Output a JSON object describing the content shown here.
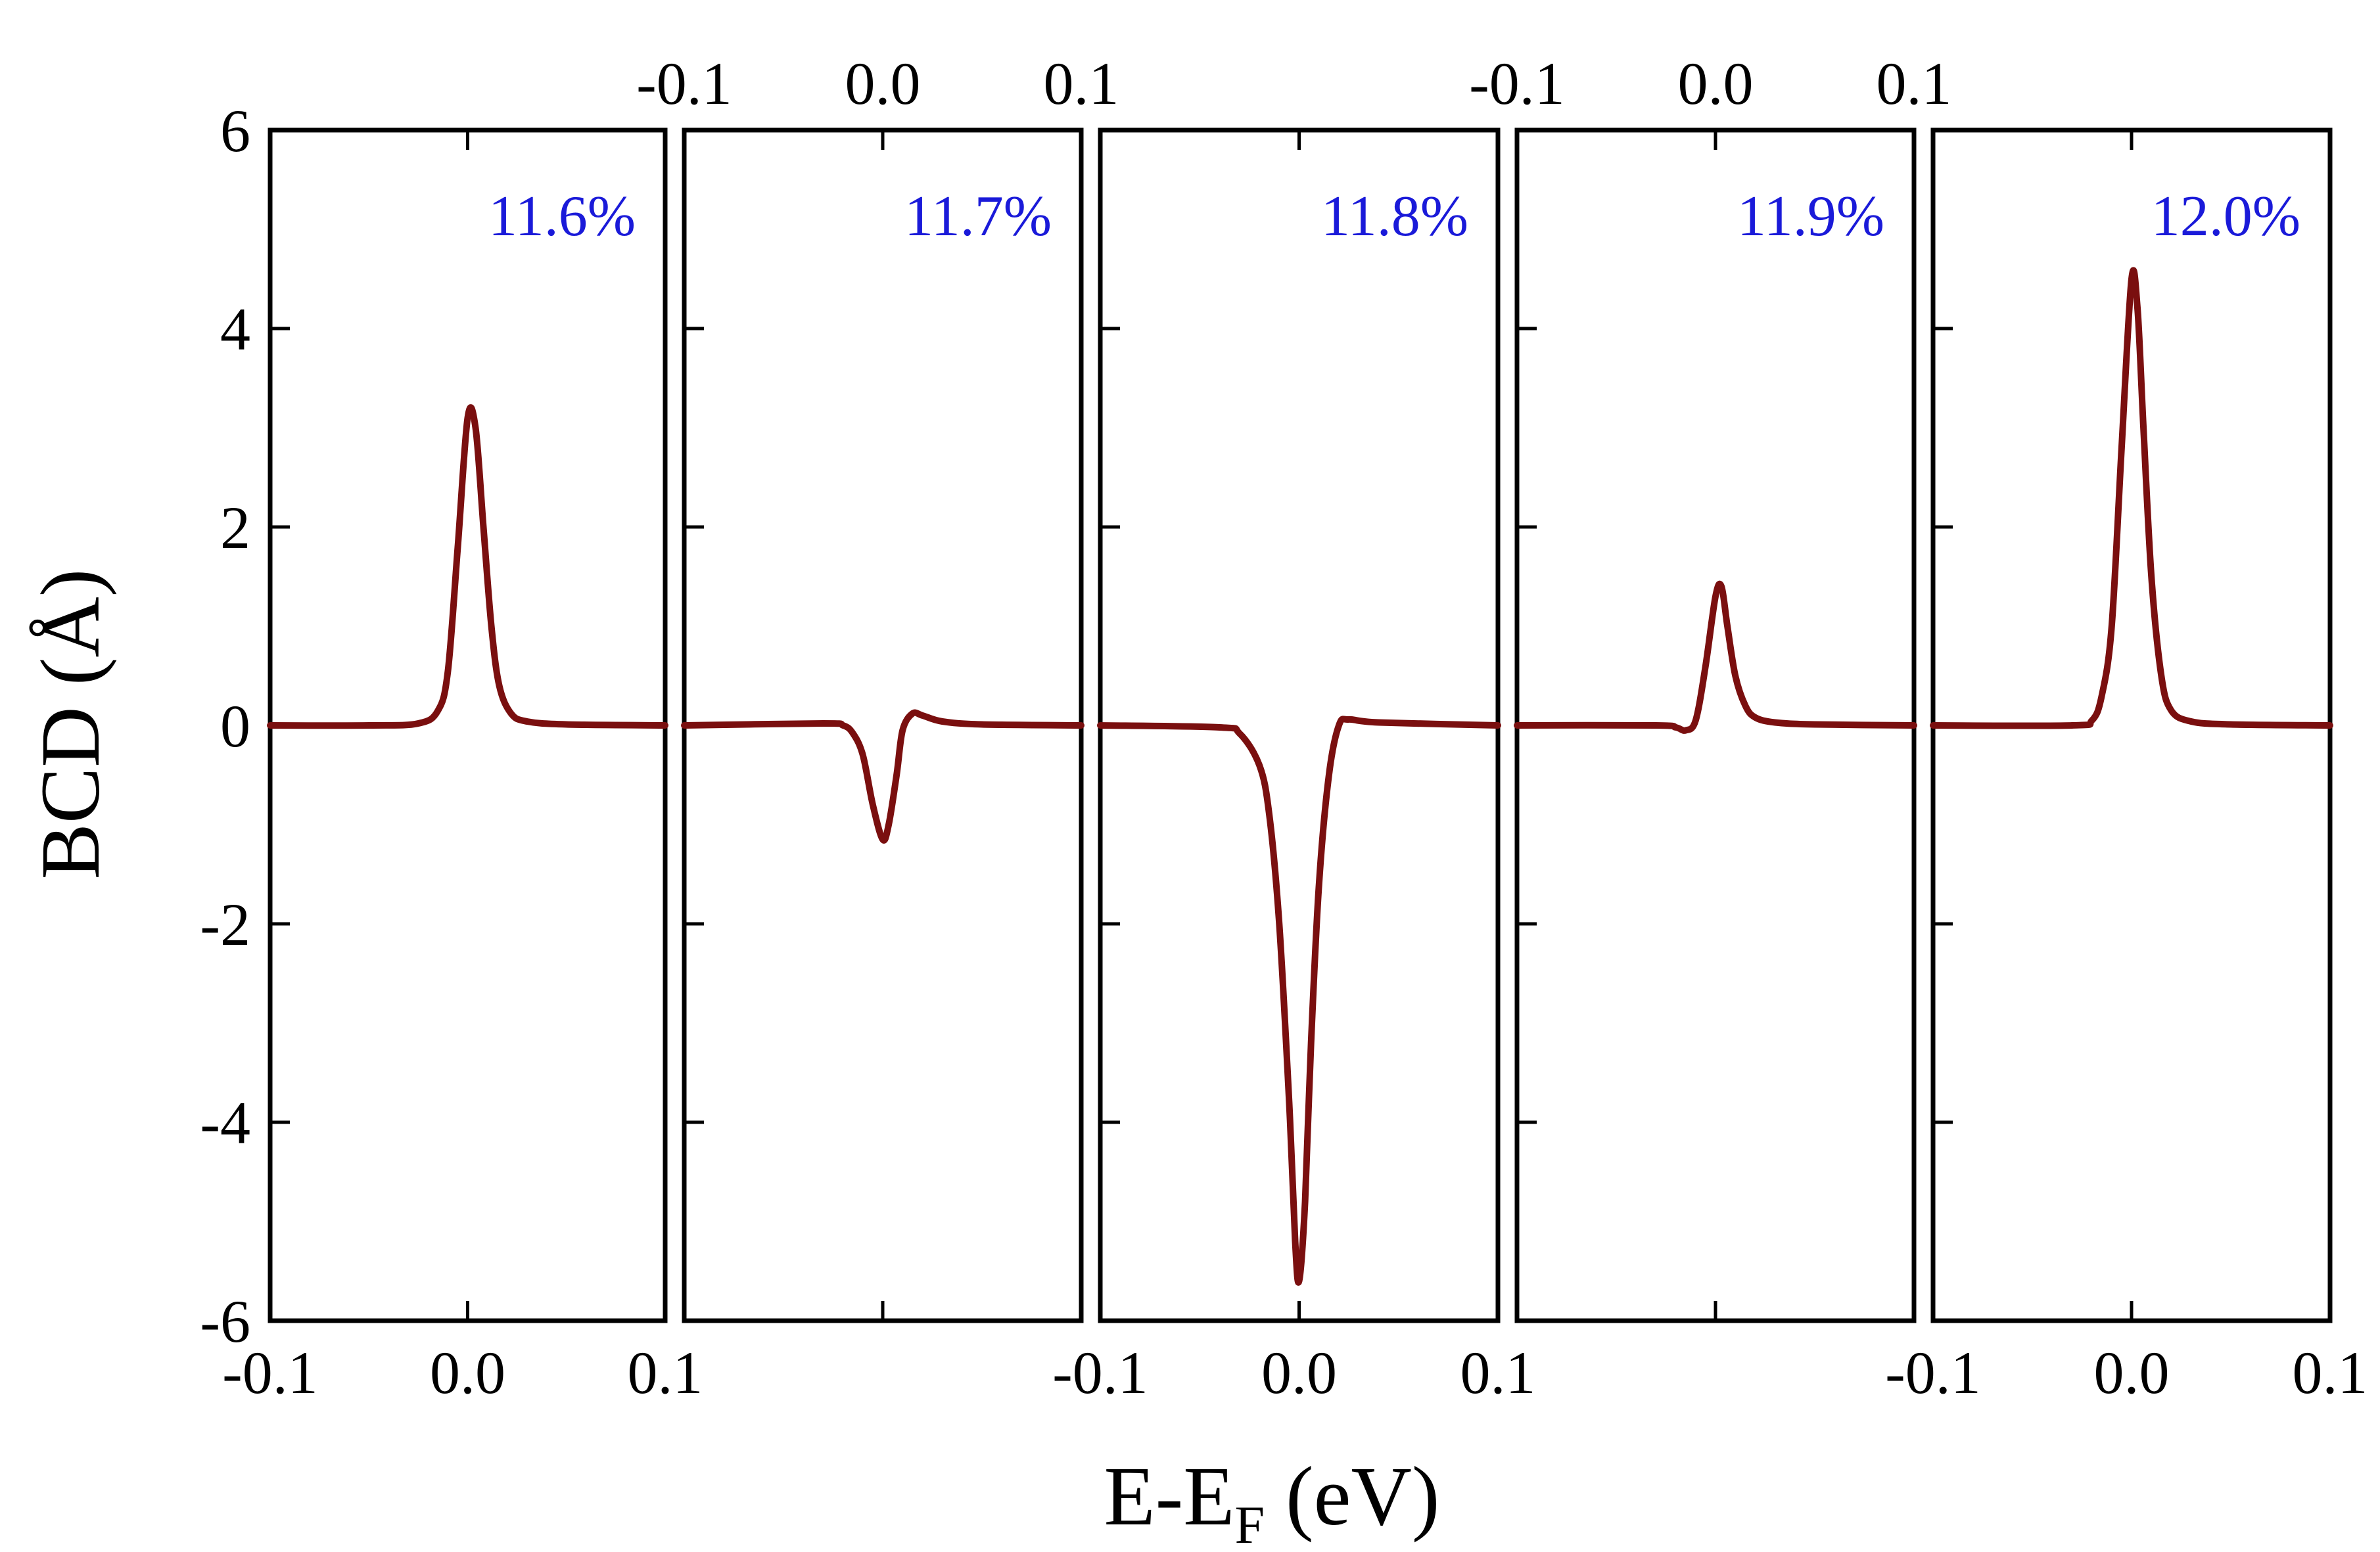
{
  "chart_data": {
    "type": "line",
    "title": "",
    "ylabel": "BCD (Å)",
    "xlabel_main": "E-E",
    "xlabel_sub": "F",
    "xlabel_unit": " (eV)",
    "xlim": [
      -0.1,
      0.1
    ],
    "ylim": [
      -6,
      6
    ],
    "yticks": [
      6,
      4,
      2,
      0,
      -2,
      -4,
      -6
    ],
    "ytick_labels": [
      "6",
      "4",
      "2",
      "0",
      "-2",
      "-4",
      "-6"
    ],
    "xticks": [
      -0.1,
      0.0,
      0.1
    ],
    "xtick_labels": [
      "-0.1",
      "0.0",
      "0.1"
    ],
    "line_color": "#7a0f0f",
    "label_color": "#1a1ad9",
    "panels": [
      {
        "label": "11.6%",
        "bottom_ticks": [
          "-0.1",
          "0.0",
          "0.1"
        ],
        "top_ticks": [],
        "points": [
          [
            -0.1,
            0
          ],
          [
            -0.05,
            0
          ],
          [
            -0.025,
            0.02
          ],
          [
            -0.015,
            0.15
          ],
          [
            -0.01,
            0.55
          ],
          [
            -0.005,
            1.8
          ],
          [
            0.0,
            3.1
          ],
          [
            0.004,
            3.0
          ],
          [
            0.008,
            2.0
          ],
          [
            0.012,
            1.0
          ],
          [
            0.016,
            0.4
          ],
          [
            0.022,
            0.12
          ],
          [
            0.03,
            0.04
          ],
          [
            0.05,
            0.01
          ],
          [
            0.1,
            0
          ]
        ]
      },
      {
        "label": "11.7%",
        "bottom_ticks": [],
        "top_ticks": [
          "-0.1",
          "0.0",
          "0.1"
        ],
        "points": [
          [
            -0.1,
            0
          ],
          [
            -0.03,
            0.02
          ],
          [
            -0.02,
            0.0
          ],
          [
            -0.015,
            -0.08
          ],
          [
            -0.01,
            -0.3
          ],
          [
            -0.005,
            -0.8
          ],
          [
            0.0,
            -1.15
          ],
          [
            0.003,
            -1.0
          ],
          [
            0.007,
            -0.5
          ],
          [
            0.01,
            -0.05
          ],
          [
            0.015,
            0.12
          ],
          [
            0.02,
            0.1
          ],
          [
            0.03,
            0.04
          ],
          [
            0.05,
            0.01
          ],
          [
            0.1,
            0
          ]
        ]
      },
      {
        "label": "11.8%",
        "bottom_ticks": [
          "-0.1",
          "0.0",
          "0.1"
        ],
        "top_ticks": [],
        "points": [
          [
            -0.1,
            0
          ],
          [
            -0.04,
            -0.02
          ],
          [
            -0.03,
            -0.08
          ],
          [
            -0.02,
            -0.4
          ],
          [
            -0.015,
            -0.9
          ],
          [
            -0.01,
            -2.0
          ],
          [
            -0.005,
            -3.8
          ],
          [
            -0.002,
            -5.2
          ],
          [
            0.0,
            -5.6
          ],
          [
            0.003,
            -4.8
          ],
          [
            0.006,
            -3.2
          ],
          [
            0.01,
            -1.6
          ],
          [
            0.015,
            -0.5
          ],
          [
            0.02,
            0.0
          ],
          [
            0.025,
            0.06
          ],
          [
            0.04,
            0.03
          ],
          [
            0.1,
            0
          ]
        ]
      },
      {
        "label": "11.9%",
        "bottom_ticks": [],
        "top_ticks": [
          "-0.1",
          "0.0",
          "0.1"
        ],
        "points": [
          [
            -0.1,
            0
          ],
          [
            -0.03,
            0
          ],
          [
            -0.02,
            -0.02
          ],
          [
            -0.015,
            -0.05
          ],
          [
            -0.01,
            0.05
          ],
          [
            -0.005,
            0.6
          ],
          [
            0.0,
            1.3
          ],
          [
            0.003,
            1.4
          ],
          [
            0.006,
            1.0
          ],
          [
            0.01,
            0.5
          ],
          [
            0.015,
            0.2
          ],
          [
            0.02,
            0.08
          ],
          [
            0.03,
            0.03
          ],
          [
            0.05,
            0.01
          ],
          [
            0.1,
            0
          ]
        ]
      },
      {
        "label": "12.0%",
        "bottom_ticks": [
          "-0.1",
          "0.0",
          "0.1"
        ],
        "top_ticks": [],
        "points": [
          [
            -0.1,
            0
          ],
          [
            -0.03,
            0
          ],
          [
            -0.02,
            0.05
          ],
          [
            -0.015,
            0.3
          ],
          [
            -0.01,
            1.0
          ],
          [
            -0.005,
            2.8
          ],
          [
            0.0,
            4.5
          ],
          [
            0.003,
            4.2
          ],
          [
            0.006,
            3.0
          ],
          [
            0.01,
            1.5
          ],
          [
            0.015,
            0.5
          ],
          [
            0.02,
            0.15
          ],
          [
            0.03,
            0.04
          ],
          [
            0.05,
            0.01
          ],
          [
            0.1,
            0
          ]
        ]
      }
    ]
  }
}
